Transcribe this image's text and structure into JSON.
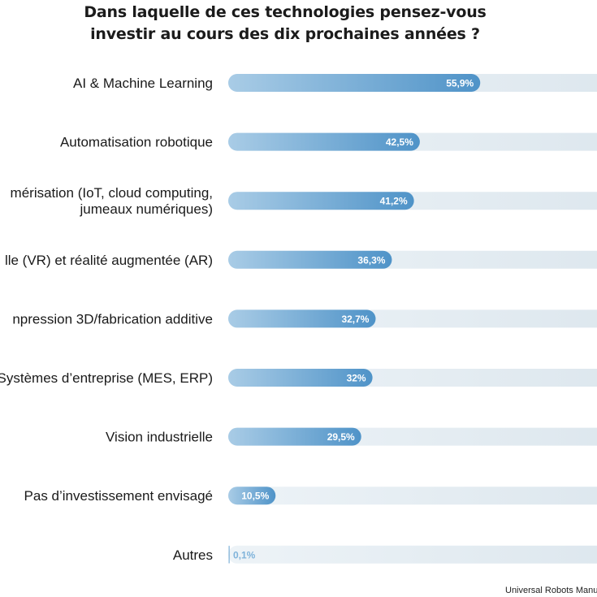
{
  "title_line1": "Dans laquelle de ces technologies pensez-vous",
  "title_line2": "investir au cours des dix prochaines années ?",
  "footer": "Universal Robots Manu",
  "colors": {
    "bar_dark": "#4f93c8",
    "bar_light": "#a9cce6",
    "track": "#dde7ee",
    "track_light": "#edf3f7",
    "value_text": "#ffffff",
    "value_text_small": "#7fb3da"
  },
  "chart_data": {
    "type": "bar",
    "orientation": "horizontal",
    "categories": [
      "AI & Machine Learning",
      "Automatisation robotique",
      [
        "mérisation (IoT, cloud computing,",
        "jumeaux numériques)"
      ],
      "lle (VR) et réalité augmentée (AR)",
      "npression 3D/fabrication additive",
      "Systèmes d’entreprise (MES, ERP)",
      "Vision industrielle",
      "Pas d’investissement envisagé",
      "Autres"
    ],
    "values": [
      55.9,
      42.5,
      41.2,
      36.3,
      32.7,
      32,
      29.5,
      10.5,
      0.1
    ],
    "value_labels": [
      "55,9%",
      "42,5%",
      "41,2%",
      "36,3%",
      "32,7%",
      "32%",
      "29,5%",
      "10,5%",
      "0,1%"
    ],
    "xlim": [
      0,
      100
    ],
    "unit": "%"
  }
}
